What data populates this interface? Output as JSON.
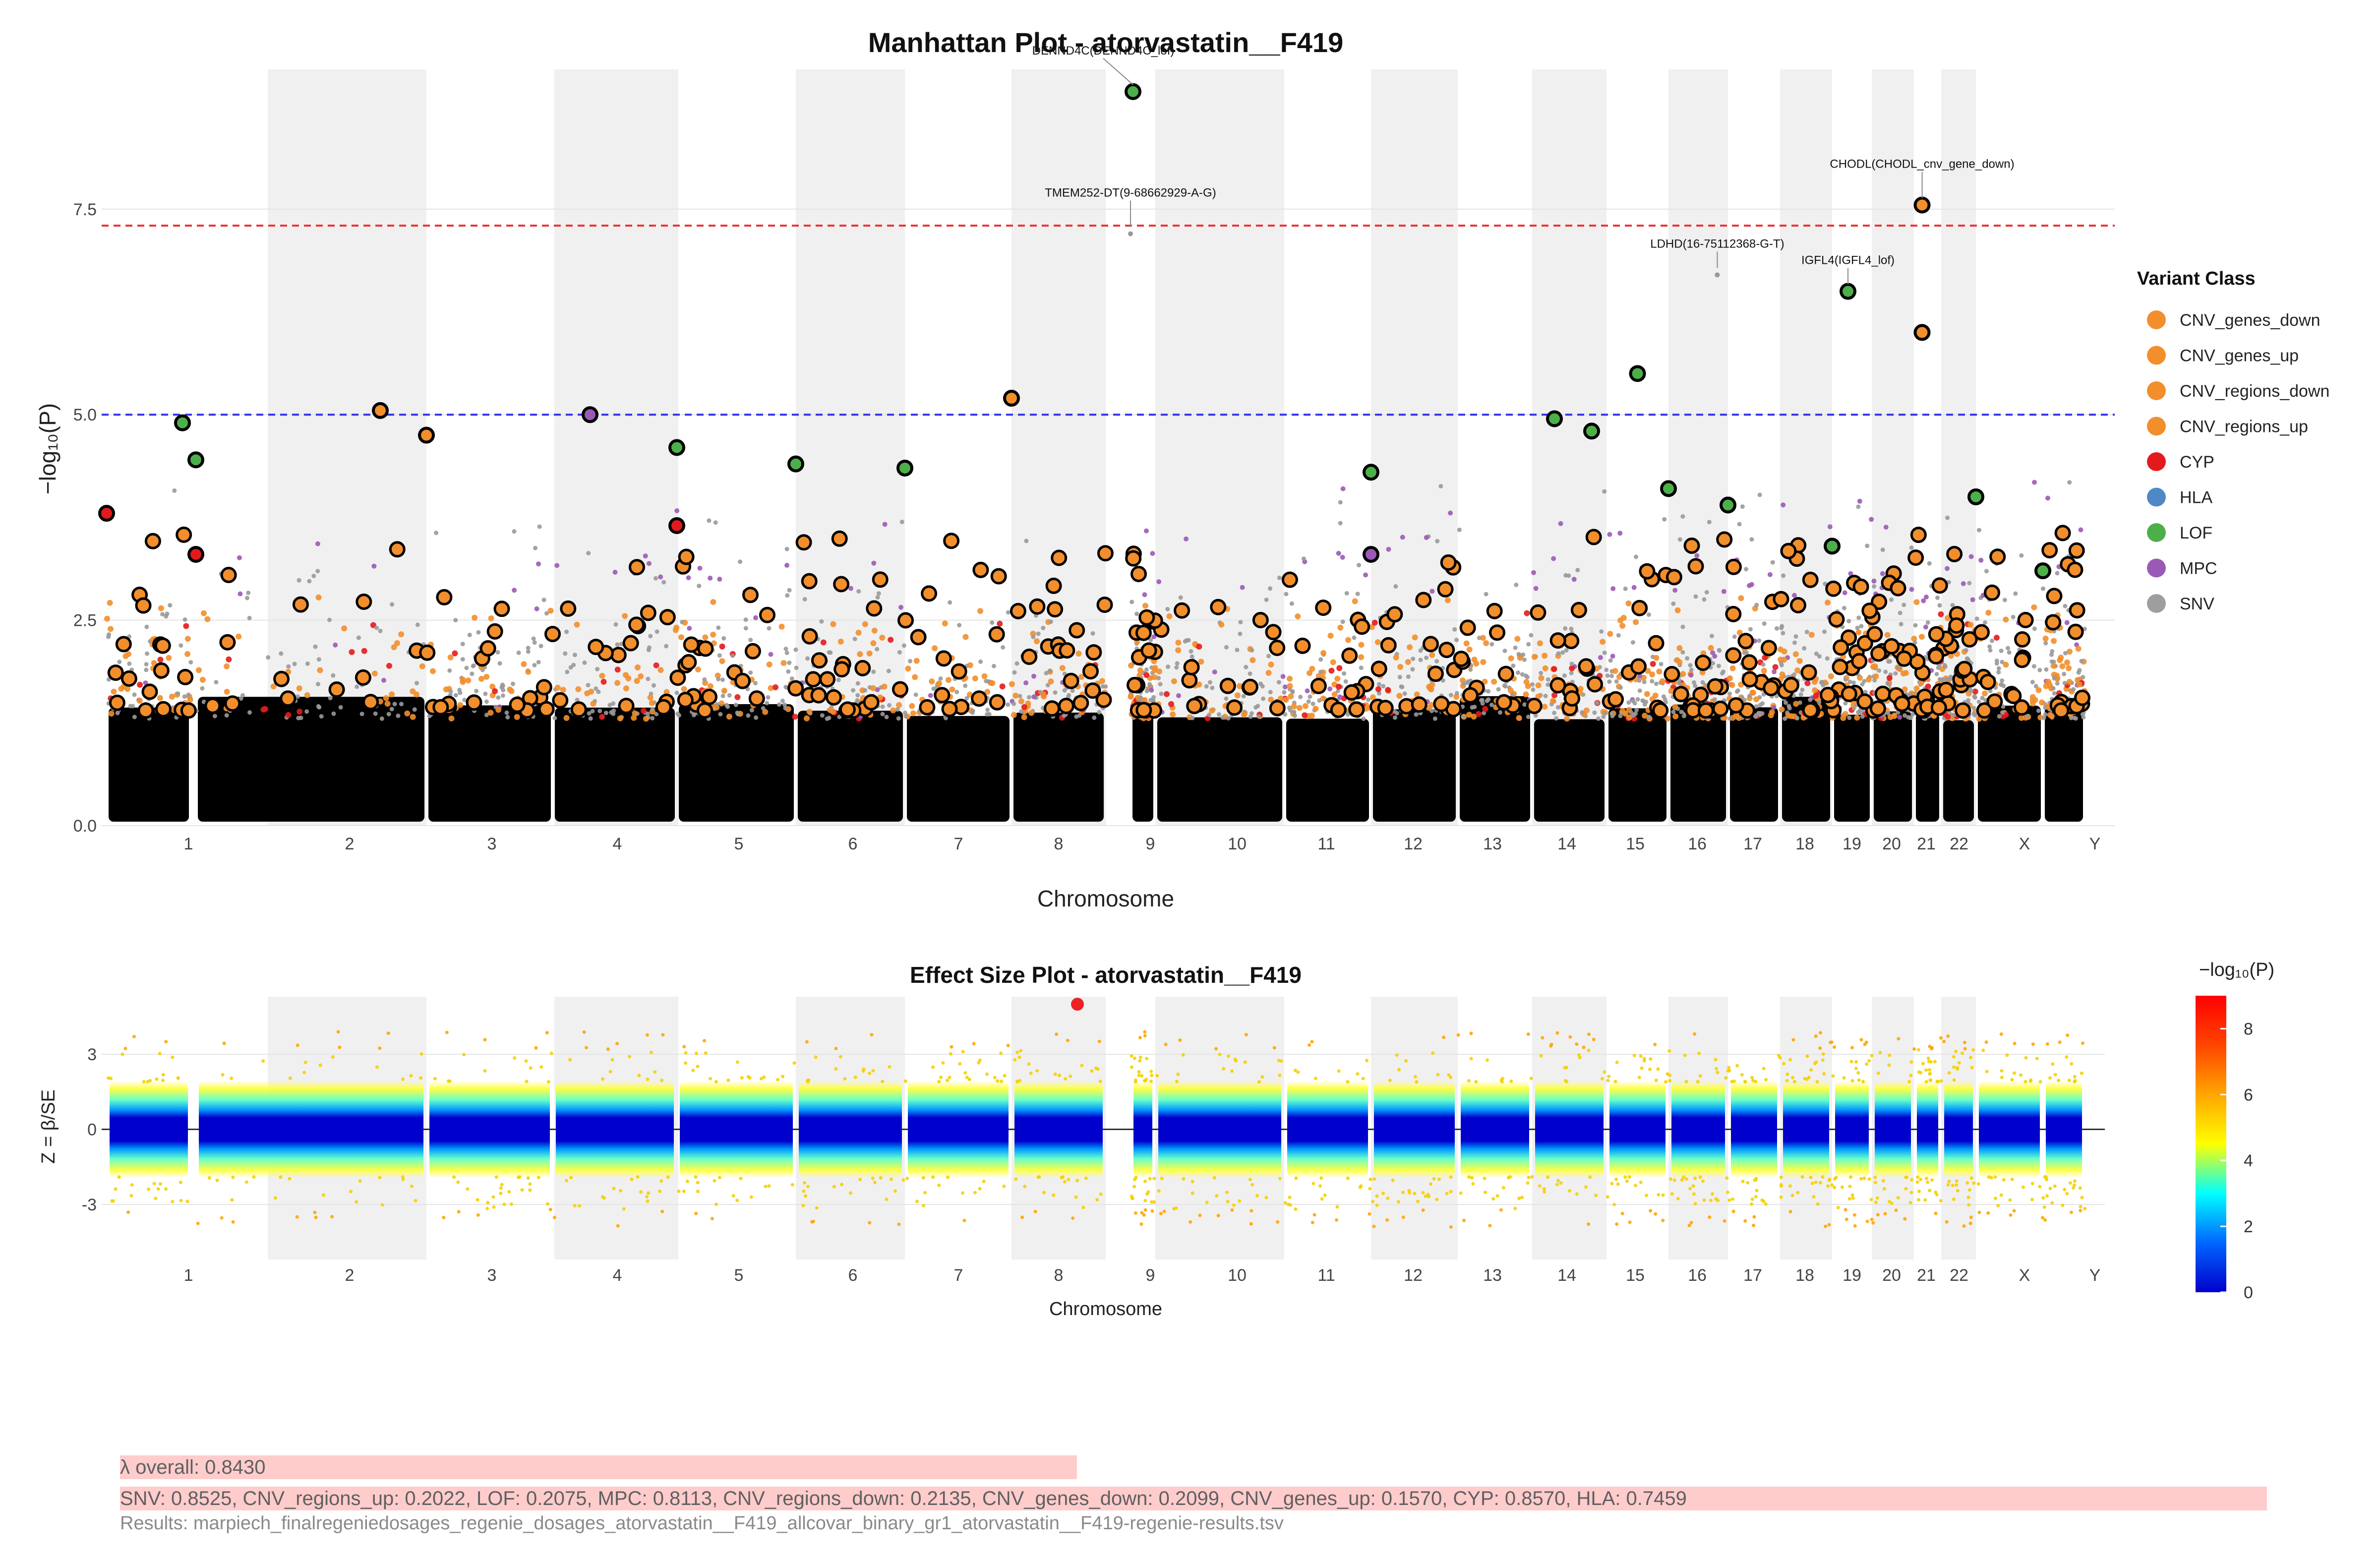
{
  "chart_data": [
    {
      "type": "scatter",
      "title": "Manhattan Plot - atorvastatin__F419",
      "xlabel": "Chromosome",
      "ylabel": "−log₁₀(P)",
      "ylim": [
        0,
        9.2
      ],
      "yticks": [
        "0.0",
        "2.5",
        "5.0",
        "7.5"
      ],
      "ytick_values": [
        0,
        2.5,
        5.0,
        7.5
      ],
      "categories": [
        "1",
        "2",
        "3",
        "4",
        "5",
        "6",
        "7",
        "8",
        "9",
        "10",
        "11",
        "12",
        "13",
        "14",
        "15",
        "16",
        "17",
        "18",
        "19",
        "20",
        "21",
        "22",
        "X",
        "Y"
      ],
      "thresholds": [
        {
          "value": 7.3,
          "color": "#ee3333",
          "style": "dashed"
        },
        {
          "value": 5.0,
          "color": "#3333ee",
          "style": "dashed"
        }
      ],
      "grid": true,
      "series": [
        {
          "name": "CNV_genes_down",
          "color": "#f28e2b"
        },
        {
          "name": "CNV_genes_up",
          "color": "#f28e2b"
        },
        {
          "name": "CNV_regions_down",
          "color": "#f28e2b"
        },
        {
          "name": "CNV_regions_up",
          "color": "#f28e2b"
        },
        {
          "name": "CYP",
          "color": "#e31a1c"
        },
        {
          "name": "HLA",
          "color": "#4e89c6"
        },
        {
          "name": "LOF",
          "color": "#4daf4a"
        },
        {
          "name": "MPC",
          "color": "#9b59b6"
        },
        {
          "name": "SNV",
          "color": "#9e9e9e"
        }
      ],
      "annotations": [
        {
          "label": "DENND4C(DENND4C_lof)",
          "chr": "9",
          "pos": 0.1,
          "y": 8.93,
          "class": "LOF"
        },
        {
          "label": "TMEM252-DT(9-68662929-A-G)",
          "chr": "9",
          "pos": 0.0,
          "y": 7.2,
          "class": "SNV"
        },
        {
          "label": "CHODL(CHODL_cnv_gene_down)",
          "chr": "21",
          "pos": 0.3,
          "y": 7.55,
          "class": "CNV_genes_down"
        },
        {
          "label": "LDHD(16-75112368-G-T)",
          "chr": "16",
          "pos": 0.82,
          "y": 6.7,
          "class": "SNV"
        },
        {
          "label": "IGFL4(IGFL4_lof)",
          "chr": "19",
          "pos": 0.4,
          "y": 6.5,
          "class": "LOF"
        }
      ],
      "highlight_points": [
        {
          "chr": "21",
          "pos": 0.3,
          "y": 6.0,
          "class": "CNV_genes_down"
        },
        {
          "chr": "15",
          "pos": 0.5,
          "y": 5.5,
          "class": "LOF"
        },
        {
          "chr": "8",
          "pos": 0.0,
          "y": 5.2,
          "class": "CNV_genes_down"
        },
        {
          "chr": "2",
          "pos": 0.8,
          "y": 5.05,
          "class": "CNV_genes_down"
        },
        {
          "chr": "4",
          "pos": 0.3,
          "y": 5.0,
          "class": "MPC"
        },
        {
          "chr": "14",
          "pos": 0.3,
          "y": 4.95,
          "class": "LOF"
        },
        {
          "chr": "1",
          "pos": 0.9,
          "y": 4.9,
          "class": "LOF"
        },
        {
          "chr": "14",
          "pos": 0.8,
          "y": 4.8,
          "class": "LOF"
        },
        {
          "chr": "3",
          "pos": 0.0,
          "y": 4.75,
          "class": "CNV_genes_down"
        },
        {
          "chr": "5",
          "pos": 0.0,
          "y": 4.6,
          "class": "LOF"
        },
        {
          "chr": "2",
          "pos": 0.0,
          "y": 4.45,
          "class": "LOF"
        },
        {
          "chr": "6",
          "pos": 0.0,
          "y": 4.4,
          "class": "LOF"
        },
        {
          "chr": "7",
          "pos": 0.0,
          "y": 4.35,
          "class": "LOF"
        },
        {
          "chr": "12",
          "pos": 0.0,
          "y": 4.3,
          "class": "LOF"
        },
        {
          "chr": "16",
          "pos": 0.0,
          "y": 4.1,
          "class": "LOF"
        },
        {
          "chr": "X",
          "pos": 0.0,
          "y": 4.0,
          "class": "LOF"
        },
        {
          "chr": "17",
          "pos": 0.0,
          "y": 3.9,
          "class": "LOF"
        },
        {
          "chr": "19",
          "pos": 0.0,
          "y": 3.4,
          "class": "LOF"
        },
        {
          "chr": "1",
          "pos": 0.0,
          "y": 3.8,
          "class": "CYP"
        },
        {
          "chr": "5",
          "pos": 0.0,
          "y": 3.65,
          "class": "CYP"
        },
        {
          "chr": "2",
          "pos": 0.0,
          "y": 3.3,
          "class": "CYP"
        },
        {
          "chr": "12",
          "pos": 0.0,
          "y": 3.3,
          "class": "MPC"
        },
        {
          "chr": "Y",
          "pos": 0.0,
          "y": 3.1,
          "class": "LOF"
        }
      ]
    },
    {
      "type": "scatter",
      "title": "Effect Size Plot - atorvastatin__F419",
      "xlabel": "Chromosome",
      "ylabel": "Z = β/SE",
      "ylim": [
        -5.2,
        5.3
      ],
      "yticks": [
        "3",
        "0",
        "-3"
      ],
      "ytick_values": [
        3,
        0,
        -3
      ],
      "categories": [
        "1",
        "2",
        "3",
        "4",
        "5",
        "6",
        "7",
        "8",
        "9",
        "10",
        "11",
        "12",
        "13",
        "14",
        "15",
        "16",
        "17",
        "18",
        "19",
        "20",
        "21",
        "22",
        "X",
        "Y"
      ],
      "color_scale": {
        "title": "−log₁₀(P)",
        "min": 0,
        "max": 9,
        "ticks": [
          "0",
          "2",
          "4",
          "6",
          "8"
        ],
        "tick_values": [
          0,
          2,
          4,
          6,
          8
        ],
        "colors": [
          "#0000cc",
          "#0066ff",
          "#00ffff",
          "#ffff00",
          "#ffa500",
          "#ff4500",
          "#ff0000"
        ]
      },
      "highlight_points": [
        {
          "chr": "8",
          "pos": 0.7,
          "y": 5.0,
          "color": "#ee2222"
        }
      ]
    }
  ],
  "legend": {
    "title": "Variant Class",
    "items": [
      {
        "label": "CNV_genes_down",
        "color": "#f28e2b"
      },
      {
        "label": "CNV_genes_up",
        "color": "#f28e2b"
      },
      {
        "label": "CNV_regions_down",
        "color": "#f28e2b"
      },
      {
        "label": "CNV_regions_up",
        "color": "#f28e2b"
      },
      {
        "label": "CYP",
        "color": "#e31a1c"
      },
      {
        "label": "HLA",
        "color": "#4e89c6"
      },
      {
        "label": "LOF",
        "color": "#4daf4a"
      },
      {
        "label": "MPC",
        "color": "#9b59b6"
      },
      {
        "label": "SNV",
        "color": "#9e9e9e"
      }
    ]
  },
  "footer": {
    "lambda_overall": "λ overall: 0.8430",
    "lambda_by_class": "SNV: 0.8525, CNV_regions_up: 0.2022, LOF: 0.2075, MPC: 0.8113, CNV_regions_down: 0.2135, CNV_genes_down: 0.2099, CNV_genes_up: 0.1570, CYP: 0.8570, HLA: 0.7459",
    "results_file": "Results: marpiech_finalregeniedosages_regenie_dosages_atorvastatin__F419_allcovar_binary_gr1_atorvastatin__F419-regenie-results.tsv"
  }
}
